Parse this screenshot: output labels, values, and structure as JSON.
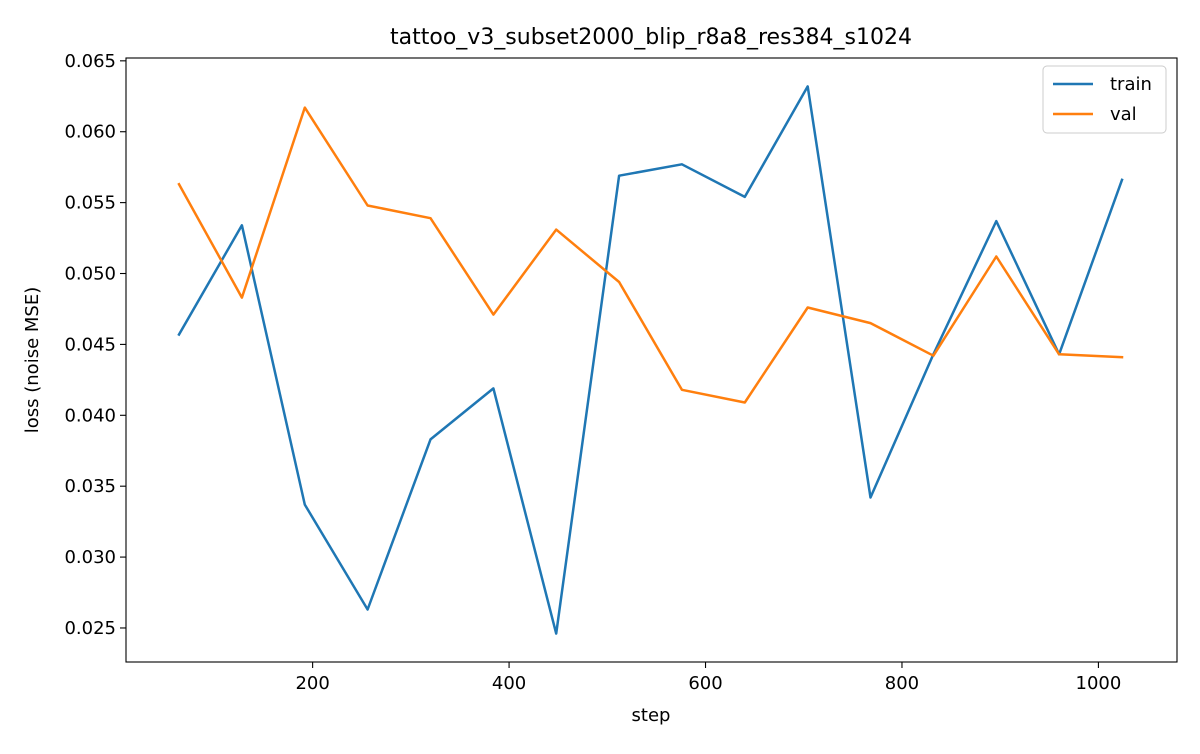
{
  "chart_data": {
    "type": "line",
    "title": "tattoo_v3_subset2000_blip_r8a8_res384_s1024",
    "xlabel": "step",
    "ylabel": "loss (noise MSE)",
    "xlim": [
      10,
      1080
    ],
    "ylim": [
      0.0226,
      0.0652
    ],
    "xticks": [
      200,
      400,
      600,
      800,
      1000
    ],
    "xtick_labels": [
      "200",
      "400",
      "600",
      "800",
      "1000"
    ],
    "yticks": [
      0.025,
      0.03,
      0.035,
      0.04,
      0.045,
      0.05,
      0.055,
      0.06,
      0.065
    ],
    "ytick_labels": [
      "0.025",
      "0.030",
      "0.035",
      "0.040",
      "0.045",
      "0.050",
      "0.055",
      "0.060",
      "0.065"
    ],
    "grid": false,
    "legend_position": "top-right",
    "x": [
      64,
      128,
      192,
      256,
      320,
      384,
      448,
      512,
      576,
      640,
      704,
      768,
      832,
      896,
      960,
      1024
    ],
    "series": [
      {
        "name": "train",
        "color": "#1f77b4",
        "values": [
          0.0457,
          0.0534,
          0.0337,
          0.0263,
          0.0383,
          0.0419,
          0.0246,
          0.0569,
          0.0577,
          0.0554,
          0.0632,
          0.0342,
          0.0443,
          0.0537,
          0.0443,
          0.0566
        ]
      },
      {
        "name": "val",
        "color": "#ff7f0e",
        "values": [
          0.0563,
          0.0483,
          0.0617,
          0.0548,
          0.0539,
          0.0471,
          0.0531,
          0.0494,
          0.0418,
          0.0409,
          0.0476,
          0.0465,
          0.0442,
          0.0512,
          0.0443,
          0.0441
        ]
      }
    ]
  }
}
